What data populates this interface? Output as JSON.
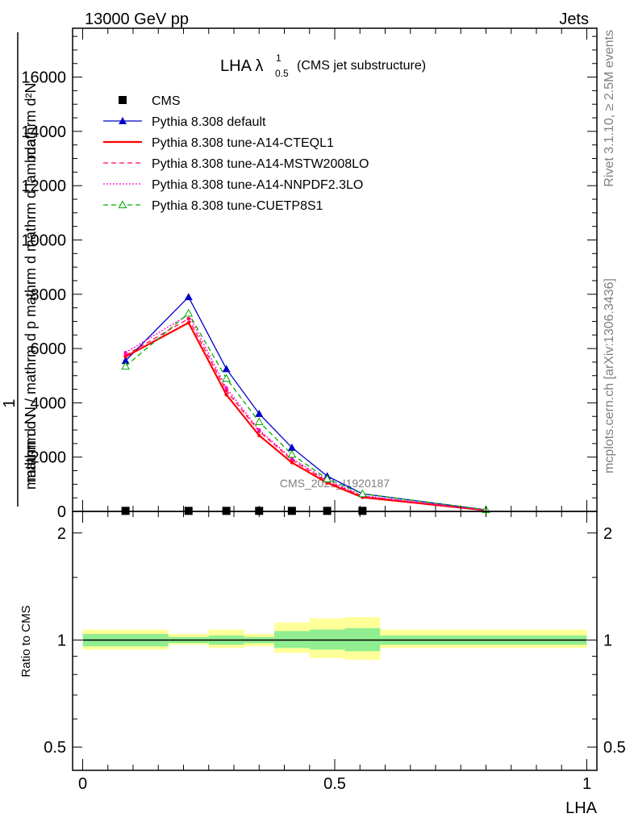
{
  "header": {
    "left": "13000 GeV pp",
    "right": "Jets"
  },
  "side": {
    "rivet": "Rivet 3.1.10, ≥ 2.5M events",
    "mcplots": "mcplots.cern.ch [arXiv:1306.3436]"
  },
  "chart_data": {
    "type": "line",
    "title_main": "LHA λ",
    "title_sup": "1",
    "title_sub": "0.5",
    "title_rest": "(CMS jet substructure)",
    "watermark": "CMS_2021_I1920187",
    "xlabel": "LHA",
    "ylabel_top": "mathrm d²N",
    "ylabel_bottom": "mathrm d p_T mathrm d lambda",
    "ylabel_combined": "mathrm d N / mathrm d p mathrm d mathrm d lambda",
    "ylabel_left": "1",
    "ylabel_frac_bottom": "mathrm d N",
    "ratio_ylabel": "Ratio to CMS",
    "xlim": [
      -0.02,
      1.02
    ],
    "ylim": [
      0,
      17800
    ],
    "yticks": [
      "0",
      "2000",
      "4000",
      "6000",
      "8000",
      "10000",
      "12000",
      "14000",
      "16000"
    ],
    "ytick_values": [
      0,
      2000,
      4000,
      6000,
      8000,
      10000,
      12000,
      14000,
      16000
    ],
    "xticks": [
      "0",
      "0.5",
      "1"
    ],
    "xtick_values": [
      0,
      0.5,
      1
    ],
    "ratio_ylim": [
      0.43,
      2.3
    ],
    "ratio_yticks": [
      "0.5",
      "1",
      "2"
    ],
    "ratio_ytick_values": [
      0.5,
      1,
      2
    ],
    "legend_position": "top-left",
    "cms": {
      "name": "CMS",
      "x": [
        0.085,
        0.21,
        0.285,
        0.35,
        0.415,
        0.485,
        0.555
      ],
      "y": [
        20,
        20,
        20,
        20,
        20,
        20,
        20
      ]
    },
    "series": [
      {
        "name": "Pythia 8.308 default",
        "color": "#0000cc",
        "style": "solid",
        "marker": "triangle-filled",
        "x": [
          0.085,
          0.21,
          0.285,
          0.35,
          0.415,
          0.485,
          0.555,
          0.8
        ],
        "y": [
          5550,
          7900,
          5250,
          3600,
          2350,
          1300,
          650,
          60
        ]
      },
      {
        "name": "Pythia 8.308 tune-A14-CTEQL1",
        "color": "#ff0000",
        "style": "solid-thick",
        "marker": "none",
        "x": [
          0.085,
          0.21,
          0.285,
          0.35,
          0.415,
          0.485,
          0.555,
          0.8
        ],
        "y": [
          5700,
          6950,
          4300,
          2800,
          1800,
          1050,
          520,
          40
        ]
      },
      {
        "name": "Pythia 8.308 tune-A14-MSTW2008LO",
        "color": "#ff0055",
        "style": "dashed",
        "marker": "none",
        "x": [
          0.085,
          0.21,
          0.285,
          0.35,
          0.415,
          0.485,
          0.555,
          0.8
        ],
        "y": [
          5750,
          7100,
          4450,
          2950,
          1900,
          1100,
          560,
          45
        ]
      },
      {
        "name": "Pythia 8.308 tune-A14-NNPDF2.3LO",
        "color": "#ff00cc",
        "style": "dotted",
        "marker": "none",
        "x": [
          0.085,
          0.21,
          0.285,
          0.35,
          0.415,
          0.485,
          0.555,
          0.8
        ],
        "y": [
          5850,
          7250,
          4550,
          3000,
          1950,
          1150,
          580,
          45
        ]
      },
      {
        "name": "Pythia 8.308 tune-CUETP8S1",
        "color": "#00aa00",
        "style": "dashed",
        "marker": "triangle-open",
        "x": [
          0.085,
          0.21,
          0.285,
          0.35,
          0.415,
          0.485,
          0.555,
          0.8
        ],
        "y": [
          5350,
          7300,
          4900,
          3300,
          2100,
          1200,
          650,
          60
        ]
      }
    ],
    "ratio_bands": {
      "bins": [
        [
          0.0,
          0.17
        ],
        [
          0.17,
          0.25
        ],
        [
          0.25,
          0.32
        ],
        [
          0.32,
          0.38
        ],
        [
          0.38,
          0.45
        ],
        [
          0.45,
          0.52
        ],
        [
          0.52,
          0.59
        ],
        [
          0.59,
          1.0
        ]
      ],
      "green": [
        [
          0.96,
          1.04
        ],
        [
          0.98,
          1.02
        ],
        [
          0.97,
          1.03
        ],
        [
          0.98,
          1.02
        ],
        [
          0.95,
          1.06
        ],
        [
          0.94,
          1.07
        ],
        [
          0.93,
          1.08
        ],
        [
          0.97,
          1.03
        ]
      ],
      "yellow": [
        [
          0.94,
          1.07
        ],
        [
          0.97,
          1.04
        ],
        [
          0.95,
          1.07
        ],
        [
          0.96,
          1.04
        ],
        [
          0.92,
          1.12
        ],
        [
          0.89,
          1.15
        ],
        [
          0.88,
          1.16
        ],
        [
          0.95,
          1.07
        ]
      ],
      "green_color": "#90ee90",
      "yellow_color": "#ffff99"
    }
  }
}
